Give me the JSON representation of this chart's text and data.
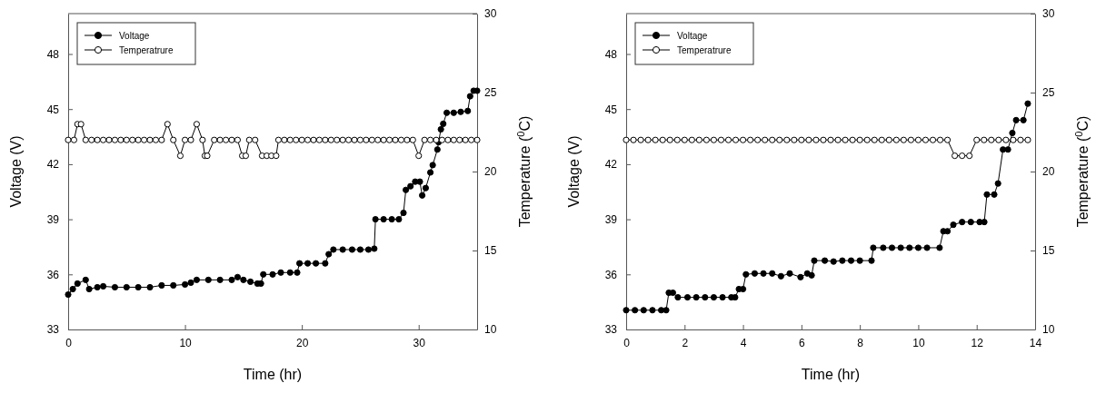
{
  "chart_data": [
    {
      "type": "line",
      "xlabel": "Time (hr)",
      "ylabel": "Voltage (V)",
      "y2label": "Temperature ($^{0}$C)",
      "xlim": [
        0,
        35
      ],
      "xticks": [
        0,
        10,
        20,
        30
      ],
      "ylim": [
        33,
        50.2
      ],
      "yticks": [
        33,
        36,
        39,
        42,
        45,
        48
      ],
      "y2lim": [
        10,
        30
      ],
      "y2ticks": [
        10,
        15,
        20,
        25,
        30
      ],
      "legend": "top left",
      "marker": "circle",
      "series": [
        {
          "name": "Voltage",
          "color": "#000000",
          "x": [
            0,
            0.4,
            0.8,
            1.5,
            1.8,
            2.5,
            3,
            4,
            5,
            6,
            7,
            8,
            9,
            10,
            10.5,
            11,
            12,
            13,
            14,
            14.5,
            15,
            15.6,
            16.2,
            16.5,
            16.7,
            17.5,
            18.2,
            19,
            19.6,
            19.8,
            20.5,
            21.2,
            22,
            22.3,
            22.7,
            23.5,
            24.3,
            25,
            25.7,
            26.2,
            26.3,
            27,
            27.7,
            28.3,
            28.7,
            28.9,
            29.3,
            29.7,
            30.1,
            30.3,
            30.6,
            31,
            31.2,
            31.6,
            31.7,
            31.9,
            32.1,
            32.4,
            33,
            33.6,
            34.2,
            34.4,
            34.7,
            35
          ],
          "values": [
            34.9,
            35.2,
            35.5,
            35.7,
            35.2,
            35.3,
            35.35,
            35.3,
            35.3,
            35.3,
            35.3,
            35.4,
            35.4,
            35.45,
            35.55,
            35.7,
            35.7,
            35.7,
            35.7,
            35.85,
            35.7,
            35.6,
            35.5,
            35.5,
            36,
            36,
            36.1,
            36.1,
            36.1,
            36.6,
            36.6,
            36.6,
            36.6,
            37.1,
            37.35,
            37.35,
            37.35,
            37.35,
            37.35,
            37.4,
            39,
            39,
            39,
            39,
            39.35,
            40.6,
            40.8,
            41.05,
            41.05,
            40.3,
            40.7,
            41.55,
            41.95,
            42.8,
            43.2,
            43.9,
            44.2,
            44.8,
            44.8,
            44.85,
            44.9,
            45.7,
            46,
            46
          ]
        },
        {
          "name": "Temperatrure",
          "color": "#000000",
          "axis": "y2",
          "x": [
            0,
            0.5,
            0.8,
            1.1,
            1.5,
            2,
            2.5,
            3,
            3.5,
            4,
            4.5,
            5,
            5.5,
            6,
            6.5,
            7,
            7.5,
            8,
            8.5,
            9,
            9.6,
            10,
            10.5,
            11,
            11.5,
            11.7,
            11.9,
            12.5,
            13,
            13.5,
            14,
            14.5,
            14.9,
            15.2,
            15.5,
            16,
            16.6,
            17,
            17.4,
            17.8,
            18,
            18.5,
            19,
            19.5,
            20,
            20.5,
            21,
            21.5,
            22,
            22.5,
            23,
            23.5,
            24,
            24.5,
            25,
            25.5,
            26,
            26.5,
            27,
            27.5,
            28,
            28.5,
            29,
            29.5,
            30,
            30.5,
            31,
            31.5,
            32,
            32.5,
            33,
            33.5,
            34,
            34.5,
            35
          ],
          "values": [
            22,
            22,
            23,
            23,
            22,
            22,
            22,
            22,
            22,
            22,
            22,
            22,
            22,
            22,
            22,
            22,
            22,
            22,
            23,
            22,
            21,
            22,
            22,
            23,
            22,
            21,
            21,
            22,
            22,
            22,
            22,
            22,
            21,
            21,
            22,
            22,
            21,
            21,
            21,
            21,
            22,
            22,
            22,
            22,
            22,
            22,
            22,
            22,
            22,
            22,
            22,
            22,
            22,
            22,
            22,
            22,
            22,
            22,
            22,
            22,
            22,
            22,
            22,
            22,
            21,
            22,
            22,
            22,
            22,
            22,
            22,
            22,
            22,
            22,
            22
          ]
        }
      ]
    },
    {
      "type": "line",
      "xlabel": "Time (hr)",
      "ylabel": "Voltage (V)",
      "y2label": "Temperature ($^{0}$C)",
      "xlim": [
        0,
        14
      ],
      "xticks": [
        0,
        2,
        4,
        6,
        8,
        10,
        12,
        14
      ],
      "ylim": [
        33,
        50.2
      ],
      "yticks": [
        33,
        36,
        39,
        42,
        45,
        48
      ],
      "y2lim": [
        10,
        30
      ],
      "y2ticks": [
        10,
        15,
        20,
        25,
        30
      ],
      "legend": "top left",
      "marker": "circle",
      "series": [
        {
          "name": "Voltage",
          "color": "#000000",
          "x": [
            0,
            0.3,
            0.6,
            0.9,
            1.2,
            1.37,
            1.46,
            1.6,
            1.77,
            2.1,
            2.4,
            2.7,
            3,
            3.3,
            3.6,
            3.73,
            3.86,
            4,
            4.1,
            4.4,
            4.7,
            5,
            5.3,
            5.6,
            5.97,
            6.2,
            6.35,
            6.44,
            6.8,
            7.1,
            7.4,
            7.7,
            8,
            8.4,
            8.46,
            8.8,
            9.1,
            9.4,
            9.7,
            10,
            10.3,
            10.73,
            10.86,
            11,
            11.2,
            11.5,
            11.8,
            12.1,
            12.26,
            12.35,
            12.6,
            12.73,
            12.9,
            13.07,
            13.22,
            13.35,
            13.6,
            13.75
          ],
          "values": [
            34.05,
            34.05,
            34.05,
            34.05,
            34.05,
            34.05,
            35,
            35,
            34.75,
            34.75,
            34.75,
            34.75,
            34.75,
            34.75,
            34.75,
            34.75,
            35.2,
            35.2,
            36,
            36.05,
            36.05,
            36.05,
            35.9,
            36.05,
            35.85,
            36.05,
            35.95,
            36.75,
            36.75,
            36.7,
            36.75,
            36.75,
            36.75,
            36.75,
            37.45,
            37.45,
            37.45,
            37.45,
            37.45,
            37.45,
            37.45,
            37.45,
            38.35,
            38.35,
            38.7,
            38.85,
            38.85,
            38.85,
            38.85,
            40.35,
            40.35,
            40.95,
            42.8,
            42.8,
            43.7,
            44.4,
            44.4,
            45.3
          ]
        },
        {
          "name": "Temperatrure",
          "color": "#000000",
          "axis": "y2",
          "x": [
            0,
            0.25,
            0.5,
            0.75,
            1,
            1.25,
            1.5,
            1.75,
            2,
            2.25,
            2.5,
            2.75,
            3,
            3.25,
            3.5,
            3.75,
            4,
            4.25,
            4.5,
            4.75,
            5,
            5.25,
            5.5,
            5.75,
            6,
            6.25,
            6.5,
            6.75,
            7,
            7.25,
            7.5,
            7.75,
            8,
            8.25,
            8.5,
            8.75,
            9,
            9.25,
            9.5,
            9.75,
            10,
            10.25,
            10.5,
            10.75,
            11,
            11.25,
            11.5,
            11.75,
            12,
            12.25,
            12.5,
            12.75,
            13,
            13.25,
            13.5,
            13.75
          ],
          "values": [
            22,
            22,
            22,
            22,
            22,
            22,
            22,
            22,
            22,
            22,
            22,
            22,
            22,
            22,
            22,
            22,
            22,
            22,
            22,
            22,
            22,
            22,
            22,
            22,
            22,
            22,
            22,
            22,
            22,
            22,
            22,
            22,
            22,
            22,
            22,
            22,
            22,
            22,
            22,
            22,
            22,
            22,
            22,
            22,
            22,
            21,
            21,
            21,
            22,
            22,
            22,
            22,
            22,
            22,
            22,
            22
          ]
        }
      ]
    }
  ]
}
